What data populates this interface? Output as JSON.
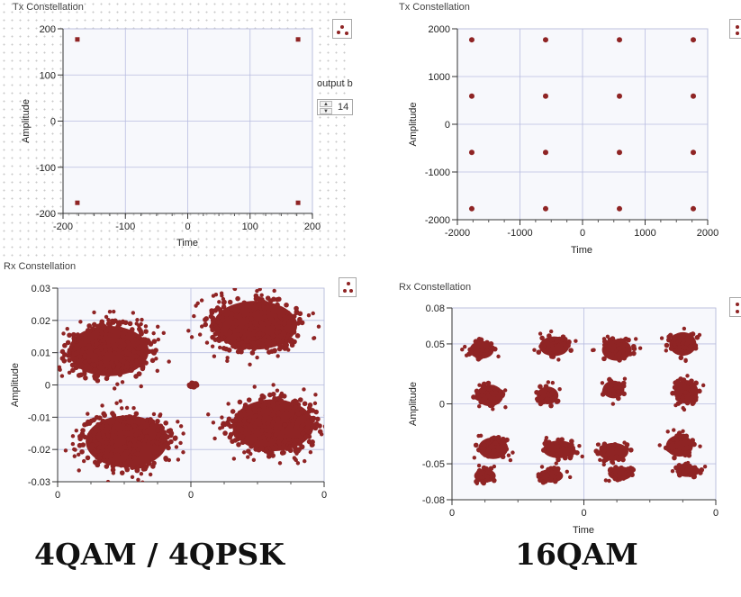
{
  "captions": {
    "left": "4QAM / 4QPSK",
    "right": "16QAM"
  },
  "control": {
    "label": "output b",
    "value": "14"
  },
  "colors": {
    "marker": "#8f2424",
    "grid": "#b8bde0",
    "plot_bg": "#f7f8fc"
  },
  "chart_data": [
    {
      "id": "tx-4qam",
      "type": "scatter",
      "title": "Tx Constellation",
      "xlabel": "Time",
      "ylabel": "Amplitude",
      "xlim": [
        -200,
        200
      ],
      "ylim": [
        -200,
        200
      ],
      "xticks": [
        -200,
        -100,
        0,
        100,
        200
      ],
      "yticks": [
        -200,
        -100,
        0,
        100,
        200
      ],
      "xtick_labels": [
        "-200",
        "-100",
        "0",
        "100",
        "200"
      ],
      "ytick_labels": [
        "-200",
        "-100",
        "0",
        "100",
        "200"
      ],
      "marker": "square",
      "grid": true,
      "points": [
        [
          -177,
          177
        ],
        [
          177,
          177
        ],
        [
          -177,
          -177
        ],
        [
          177,
          -177
        ]
      ]
    },
    {
      "id": "tx-16qam",
      "type": "scatter",
      "title": "Tx Constellation",
      "xlabel": "Time",
      "ylabel": "Amplitude",
      "xlim": [
        -2000,
        2000
      ],
      "ylim": [
        -2000,
        2000
      ],
      "xticks": [
        -2000,
        -1000,
        0,
        1000,
        2000
      ],
      "yticks": [
        -2000,
        -1000,
        0,
        1000,
        2000
      ],
      "xtick_labels": [
        "-2000",
        "-1000",
        "0",
        "1000",
        "2000"
      ],
      "ytick_labels": [
        "-2000",
        "-1000",
        "0",
        "1000",
        "2000"
      ],
      "marker": "circle",
      "grid": true,
      "points": [
        [
          -1770,
          1770
        ],
        [
          -590,
          1770
        ],
        [
          590,
          1770
        ],
        [
          1770,
          1770
        ],
        [
          -1770,
          590
        ],
        [
          -590,
          590
        ],
        [
          590,
          590
        ],
        [
          1770,
          590
        ],
        [
          -1770,
          -590
        ],
        [
          -590,
          -590
        ],
        [
          590,
          -590
        ],
        [
          1770,
          -590
        ],
        [
          -1770,
          -1770
        ],
        [
          -590,
          -1770
        ],
        [
          590,
          -1770
        ],
        [
          1770,
          -1770
        ]
      ]
    },
    {
      "id": "rx-4qam",
      "type": "scatter",
      "title": "Rx Constellation",
      "xlabel": "",
      "ylabel": "Amplitude",
      "xlim": [
        -0.03,
        0.03
      ],
      "ylim": [
        -0.03,
        0.03
      ],
      "xticks": [
        -0.03,
        0,
        0.03
      ],
      "yticks": [
        -0.03,
        -0.02,
        -0.01,
        0,
        0.01,
        0.02,
        0.03
      ],
      "xtick_labels": [
        "0",
        "0",
        "0"
      ],
      "ytick_labels": [
        "-0.03",
        "-0.02",
        "-0.01",
        "0",
        "0.01",
        "0.02",
        "0.03"
      ],
      "marker": "circle",
      "grid": true,
      "clusters": [
        {
          "cx": -0.0185,
          "cy": 0.0105,
          "rx": 0.011,
          "ry": 0.0095
        },
        {
          "cx": 0.0145,
          "cy": 0.0185,
          "rx": 0.0115,
          "ry": 0.0092
        },
        {
          "cx": -0.0145,
          "cy": -0.0175,
          "rx": 0.0112,
          "ry": 0.0098
        },
        {
          "cx": 0.0185,
          "cy": -0.0125,
          "rx": 0.0112,
          "ry": 0.0098
        },
        {
          "cx": 0.0005,
          "cy": 0.0,
          "rx": 0.0009,
          "ry": 0.0007
        }
      ]
    },
    {
      "id": "rx-16qam",
      "type": "scatter",
      "title": "Rx Constellation",
      "xlabel": "Time",
      "ylabel": "Amplitude",
      "xlim": [
        -0.08,
        0.08
      ],
      "ylim": [
        -0.08,
        0.08
      ],
      "xticks": [
        -0.08,
        0,
        0.08
      ],
      "yticks": [
        -0.08,
        -0.05,
        0,
        0.05,
        0.08
      ],
      "xtick_labels": [
        "0",
        "0",
        "0"
      ],
      "ytick_labels": [
        "-0.08",
        "-0.05",
        "0",
        "0.05",
        "0.08"
      ],
      "marker": "circle",
      "grid": true,
      "clusters": [
        {
          "cx": -0.062,
          "cy": 0.045,
          "rx": 0.009,
          "ry": 0.009
        },
        {
          "cx": -0.018,
          "cy": 0.048,
          "rx": 0.011,
          "ry": 0.01
        },
        {
          "cx": 0.02,
          "cy": 0.045,
          "rx": 0.011,
          "ry": 0.011
        },
        {
          "cx": 0.06,
          "cy": 0.05,
          "rx": 0.01,
          "ry": 0.012
        },
        {
          "cx": -0.057,
          "cy": 0.007,
          "rx": 0.01,
          "ry": 0.011
        },
        {
          "cx": -0.022,
          "cy": 0.007,
          "rx": 0.008,
          "ry": 0.009
        },
        {
          "cx": 0.018,
          "cy": 0.012,
          "rx": 0.008,
          "ry": 0.009
        },
        {
          "cx": 0.062,
          "cy": 0.01,
          "rx": 0.009,
          "ry": 0.012
        },
        {
          "cx": -0.055,
          "cy": -0.037,
          "rx": 0.011,
          "ry": 0.011
        },
        {
          "cx": -0.015,
          "cy": -0.038,
          "rx": 0.012,
          "ry": 0.009
        },
        {
          "cx": 0.018,
          "cy": -0.04,
          "rx": 0.011,
          "ry": 0.009
        },
        {
          "cx": 0.058,
          "cy": -0.035,
          "rx": 0.01,
          "ry": 0.011
        },
        {
          "cx": -0.06,
          "cy": -0.06,
          "rx": 0.008,
          "ry": 0.007
        },
        {
          "cx": -0.02,
          "cy": -0.06,
          "rx": 0.009,
          "ry": 0.007
        },
        {
          "cx": 0.022,
          "cy": -0.058,
          "rx": 0.009,
          "ry": 0.007
        },
        {
          "cx": 0.063,
          "cy": -0.056,
          "rx": 0.009,
          "ry": 0.006
        }
      ]
    }
  ]
}
